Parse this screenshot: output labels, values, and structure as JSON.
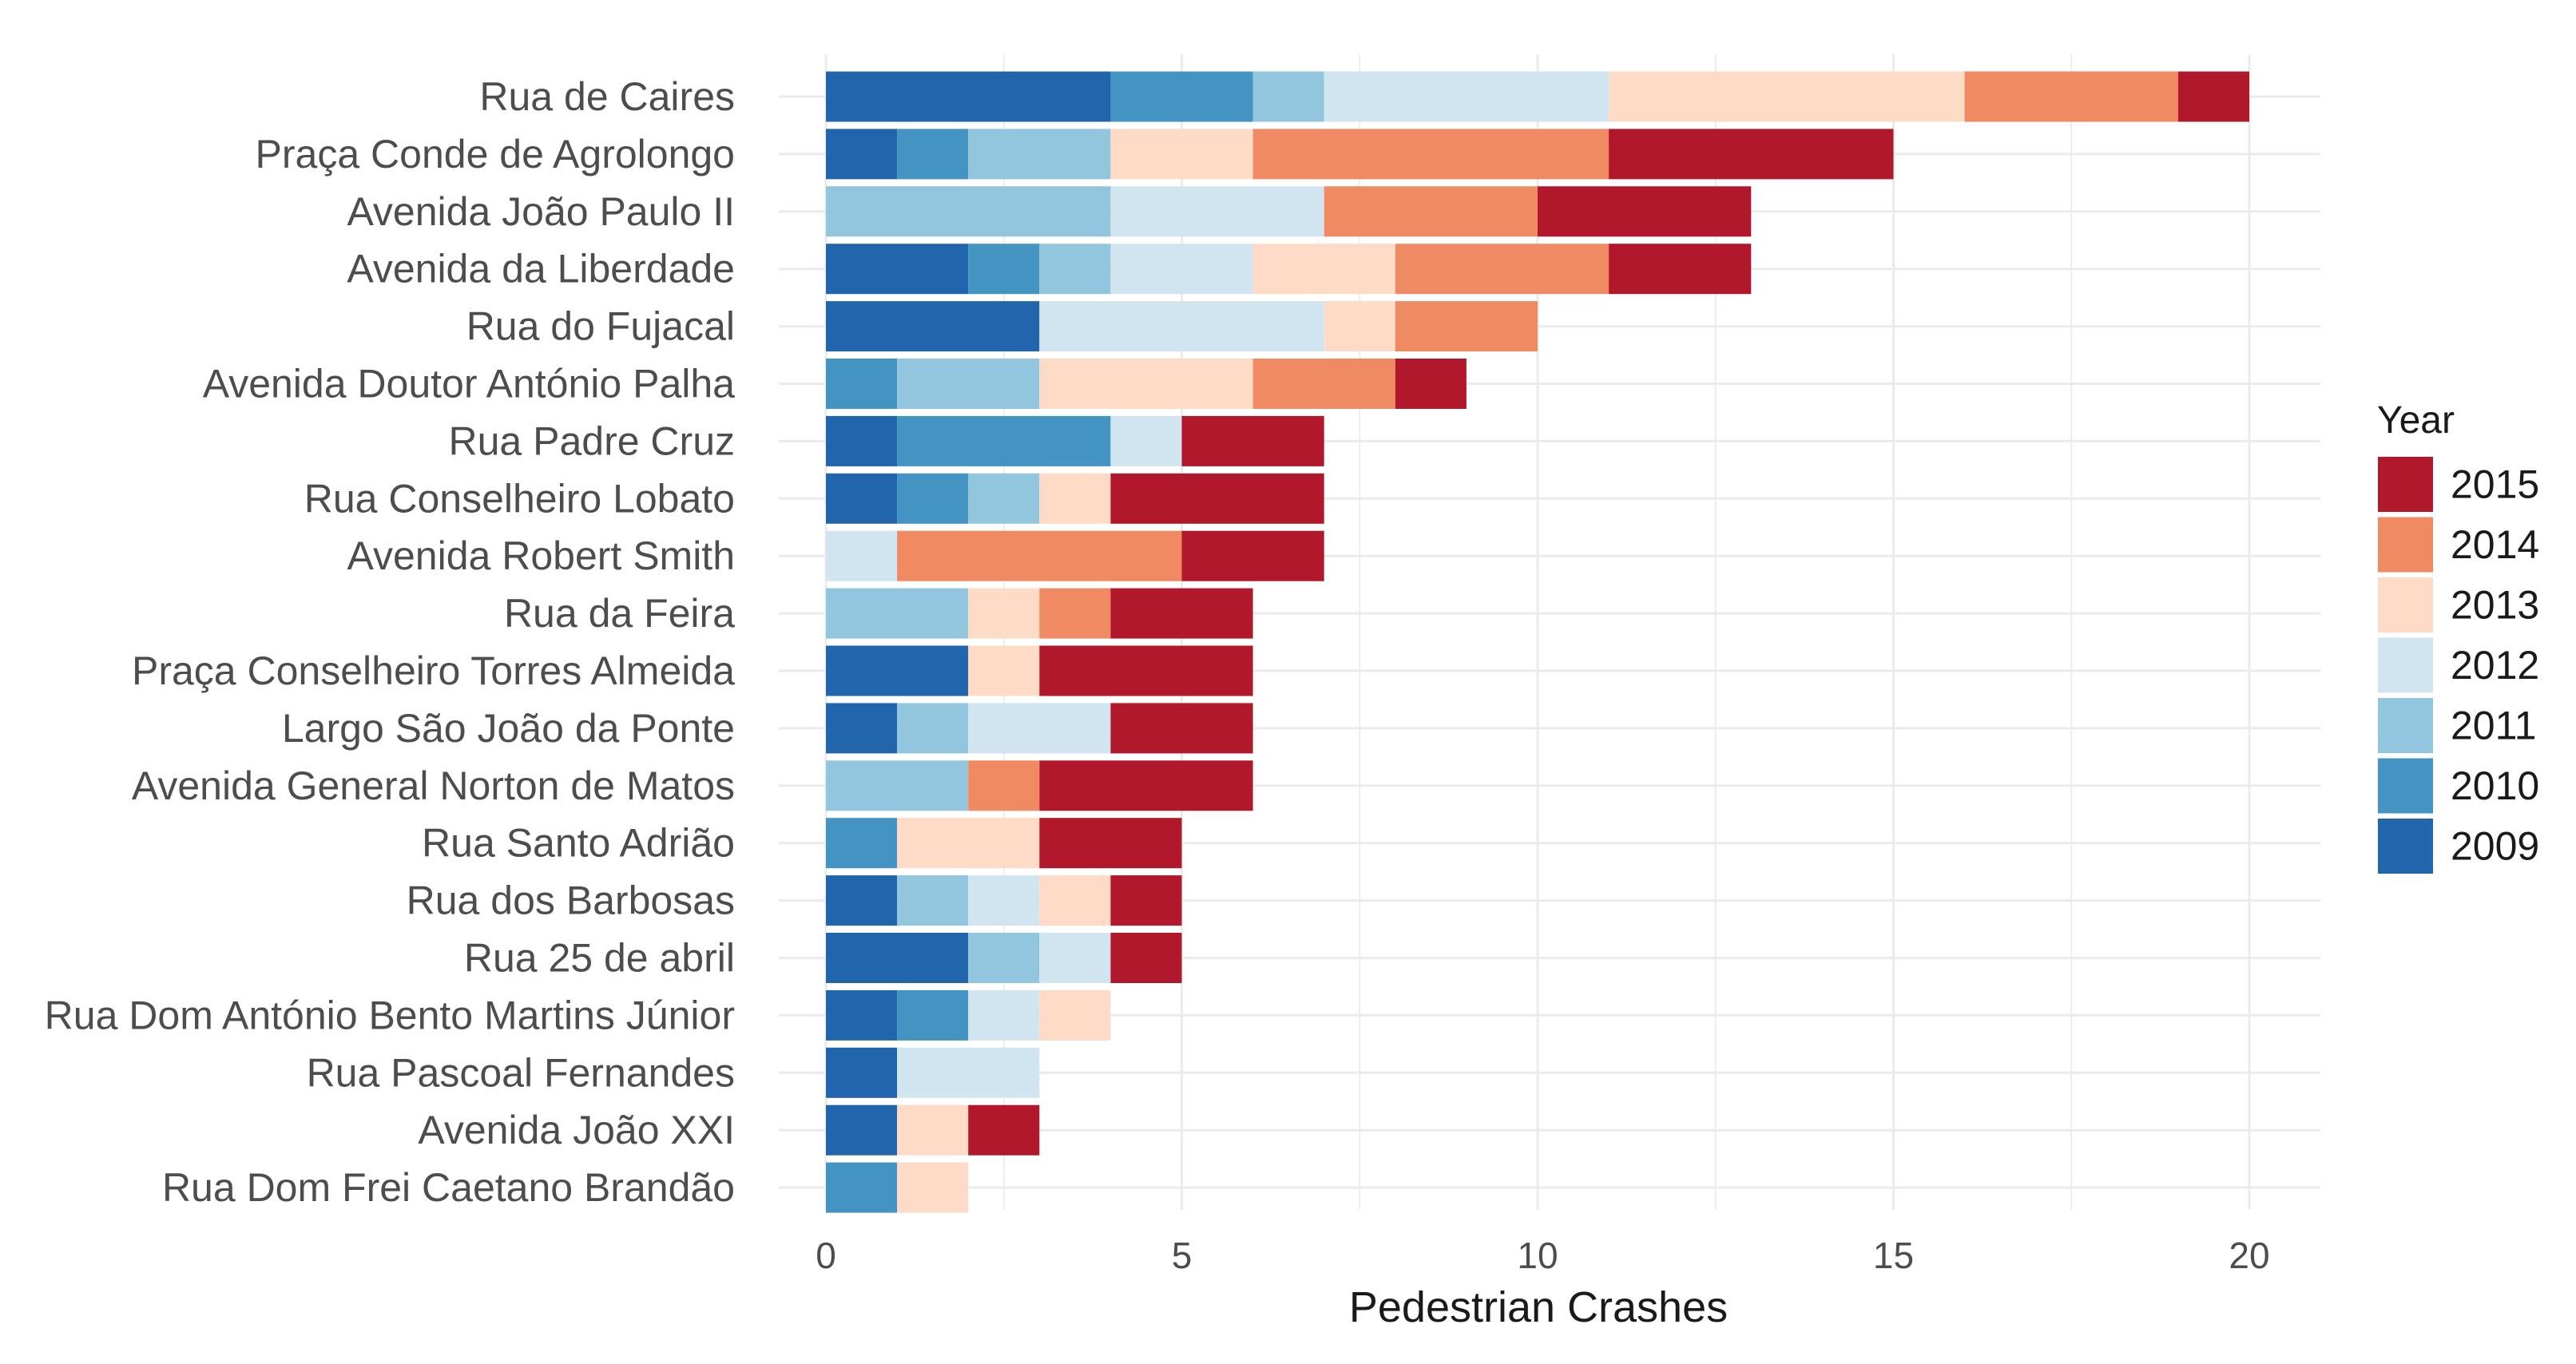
{
  "chart_data": {
    "type": "bar",
    "orientation": "horizontal",
    "stacked": true,
    "title": "",
    "xlabel": "Pedestrian Crashes",
    "ylabel": "",
    "xlim": [
      0,
      21
    ],
    "xticks": [
      0,
      5,
      10,
      15,
      20
    ],
    "xtick_labels": [
      "0",
      "5",
      "10",
      "15",
      "20"
    ],
    "grid": true,
    "legend": {
      "title": "Year",
      "position": "right",
      "entries": [
        "2015",
        "2014",
        "2013",
        "2012",
        "2011",
        "2010",
        "2009"
      ]
    },
    "categories": [
      "Rua de Caires",
      "Praça Conde de Agrolongo",
      "Avenida João Paulo II",
      "Avenida da Liberdade",
      "Rua do Fujacal",
      "Avenida Doutor António Palha",
      "Rua Padre Cruz",
      "Rua Conselheiro Lobato",
      "Avenida Robert Smith",
      "Rua da Feira",
      "Praça Conselheiro Torres Almeida",
      "Largo São João da Ponte",
      "Avenida General Norton de Matos",
      "Rua Santo Adrião",
      "Rua dos Barbosas",
      "Rua 25 de abril",
      "Rua Dom António Bento Martins Júnior",
      "Rua Pascoal Fernandes",
      "Avenida João XXI",
      "Rua Dom Frei Caetano Brandão"
    ],
    "series": [
      {
        "name": "2009",
        "color": "#2166ac",
        "values": [
          4,
          1,
          0,
          2,
          3,
          0,
          1,
          1,
          0,
          0,
          2,
          1,
          0,
          0,
          1,
          2,
          1,
          1,
          1,
          0
        ]
      },
      {
        "name": "2010",
        "color": "#4393c3",
        "values": [
          2,
          1,
          0,
          1,
          0,
          1,
          3,
          1,
          0,
          0,
          0,
          0,
          0,
          1,
          0,
          0,
          1,
          0,
          0,
          1
        ]
      },
      {
        "name": "2011",
        "color": "#92c5de",
        "values": [
          1,
          2,
          4,
          1,
          0,
          2,
          0,
          1,
          0,
          2,
          0,
          1,
          2,
          0,
          1,
          1,
          0,
          0,
          0,
          0
        ]
      },
      {
        "name": "2012",
        "color": "#d1e5f0",
        "values": [
          4,
          0,
          3,
          2,
          4,
          0,
          1,
          0,
          1,
          0,
          0,
          2,
          0,
          0,
          1,
          1,
          1,
          2,
          0,
          0
        ]
      },
      {
        "name": "2013",
        "color": "#fddbc7",
        "values": [
          5,
          2,
          0,
          2,
          1,
          3,
          0,
          1,
          0,
          1,
          1,
          0,
          0,
          2,
          1,
          0,
          1,
          0,
          1,
          1
        ]
      },
      {
        "name": "2014",
        "color": "#ef8a62",
        "values": [
          3,
          5,
          3,
          3,
          2,
          2,
          0,
          0,
          4,
          1,
          0,
          0,
          1,
          0,
          0,
          0,
          0,
          0,
          0,
          0
        ]
      },
      {
        "name": "2015",
        "color": "#b2182b",
        "values": [
          1,
          4,
          3,
          2,
          0,
          1,
          2,
          3,
          2,
          2,
          3,
          2,
          3,
          2,
          1,
          1,
          0,
          0,
          1,
          0
        ]
      }
    ]
  }
}
